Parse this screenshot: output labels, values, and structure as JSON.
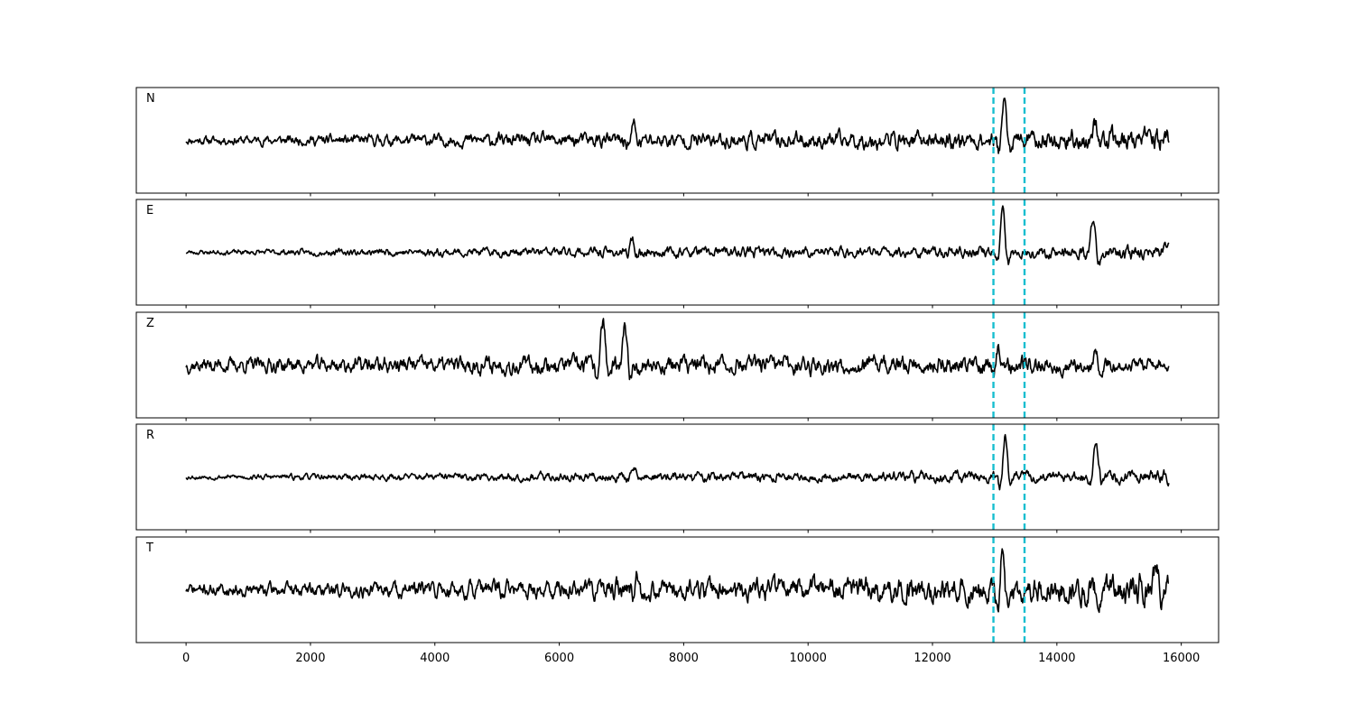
{
  "chart_data": {
    "type": "line",
    "x_ticks": [
      0,
      2000,
      4000,
      6000,
      8000,
      10000,
      12000,
      14000,
      16000
    ],
    "x_tick_labels": [
      "0",
      "2000",
      "4000",
      "6000",
      "8000",
      "10000",
      "12000",
      "14000",
      "16000"
    ],
    "xlim": [
      -800,
      16600
    ],
    "n_samples": 15800,
    "picks": [
      12980,
      13480
    ],
    "pick_color": "#17becf",
    "trace_color": "#000000",
    "ylim": [
      -1,
      1
    ],
    "panels": [
      {
        "label": "N",
        "noise": [
          [
            0,
            0.09
          ],
          [
            6600,
            0.16
          ],
          [
            13500,
            0.2
          ],
          [
            15800,
            0.25
          ]
        ],
        "events": [
          [
            13150,
            0.8,
            60
          ],
          [
            14620,
            0.35,
            70
          ],
          [
            7200,
            0.3,
            60
          ]
        ],
        "seed": 11
      },
      {
        "label": "E",
        "noise": [
          [
            0,
            0.05
          ],
          [
            6600,
            0.11
          ],
          [
            13500,
            0.12
          ],
          [
            15800,
            0.16
          ]
        ],
        "events": [
          [
            13130,
            0.85,
            60
          ],
          [
            14580,
            0.6,
            70
          ],
          [
            7170,
            0.25,
            60
          ]
        ],
        "seed": 23
      },
      {
        "label": "Z",
        "noise": [
          [
            0,
            0.16
          ],
          [
            6600,
            0.2
          ],
          [
            13500,
            0.2
          ],
          [
            15800,
            0.14
          ]
        ],
        "events": [
          [
            6700,
            0.85,
            70
          ],
          [
            7050,
            0.65,
            60
          ],
          [
            14620,
            0.35,
            50
          ],
          [
            13050,
            0.35,
            50
          ]
        ],
        "seed": 37
      },
      {
        "label": "R",
        "noise": [
          [
            0,
            0.05
          ],
          [
            6600,
            0.1
          ],
          [
            13500,
            0.12
          ],
          [
            15800,
            0.14
          ]
        ],
        "events": [
          [
            13170,
            0.85,
            60
          ],
          [
            14630,
            0.65,
            70
          ],
          [
            7200,
            0.22,
            60
          ]
        ],
        "seed": 53
      },
      {
        "label": "T",
        "noise": [
          [
            0,
            0.13
          ],
          [
            6600,
            0.22
          ],
          [
            13500,
            0.28
          ],
          [
            15800,
            0.35
          ]
        ],
        "events": [
          [
            13120,
            0.8,
            50
          ],
          [
            15600,
            0.45,
            60
          ],
          [
            7250,
            0.35,
            50
          ]
        ],
        "seed": 71
      }
    ]
  }
}
